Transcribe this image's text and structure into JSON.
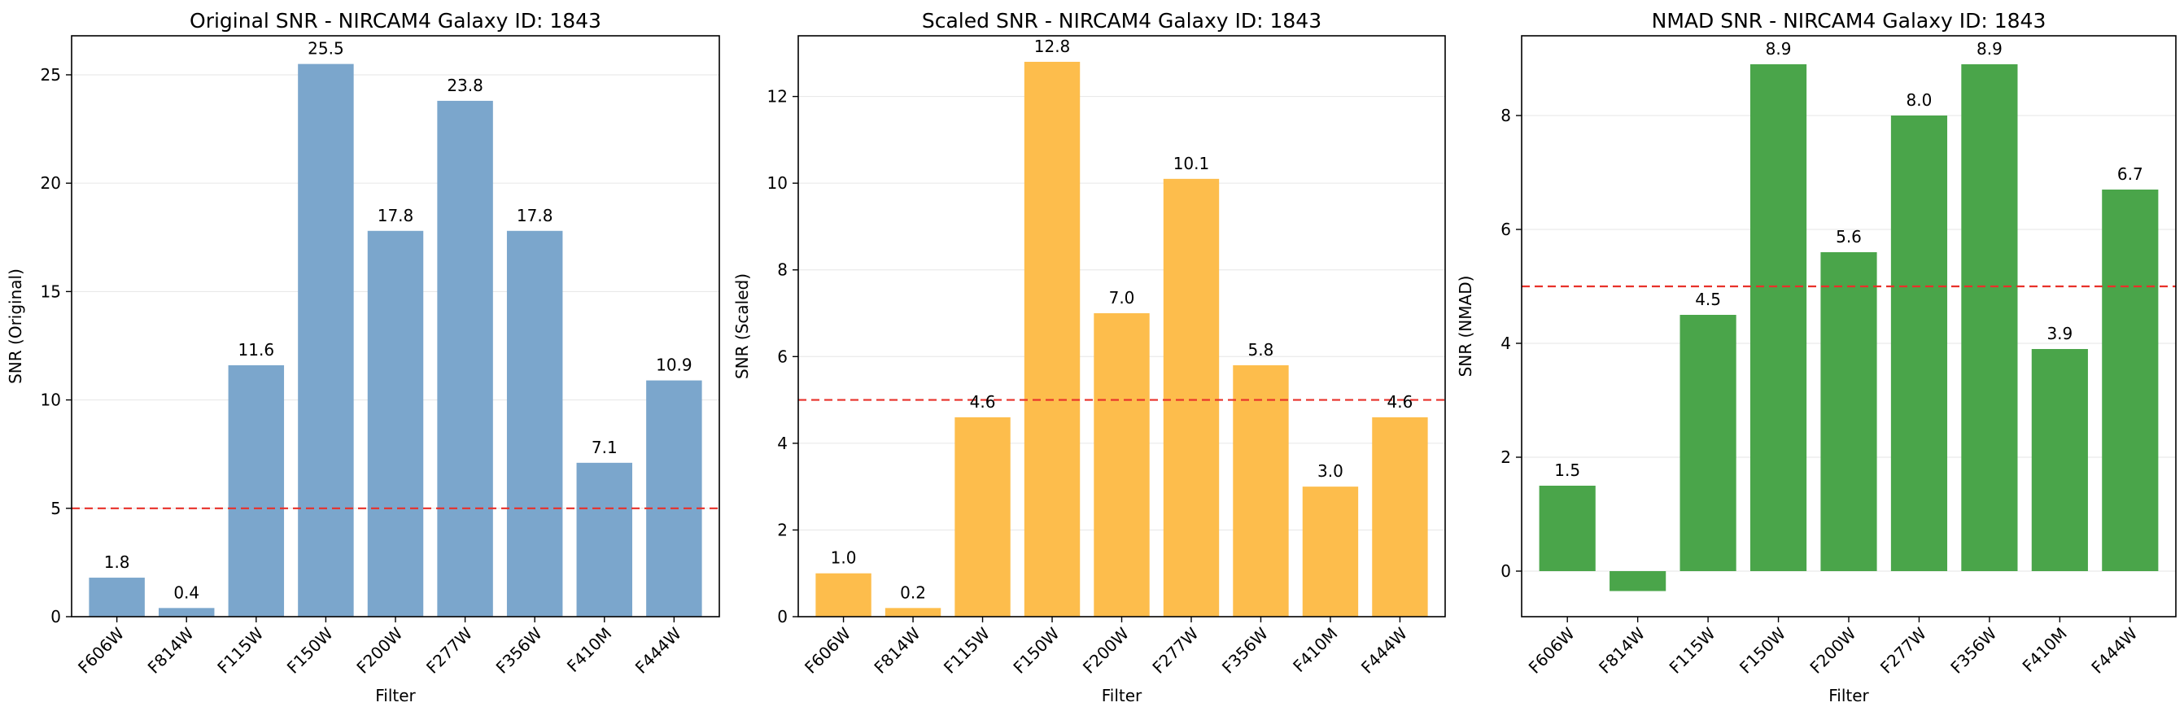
{
  "threshold_color": "#e8312a",
  "chart_data": [
    {
      "type": "bar",
      "title": "Original SNR - NIRCAM4 Galaxy ID: 1843",
      "xlabel": "Filter",
      "ylabel": "SNR (Original)",
      "categories": [
        "F606W",
        "F814W",
        "F115W",
        "F150W",
        "F200W",
        "F277W",
        "F356W",
        "F410M",
        "F444W"
      ],
      "values": [
        1.8,
        0.4,
        11.6,
        25.5,
        17.8,
        23.8,
        17.8,
        7.1,
        10.9
      ],
      "value_labels": [
        "1.8",
        "0.4",
        "11.6",
        "25.5",
        "17.8",
        "23.8",
        "17.8",
        "7.1",
        "10.9"
      ],
      "ylim": [
        0,
        26.8
      ],
      "yticks": [
        0,
        5,
        10,
        15,
        20,
        25
      ],
      "threshold": 5,
      "color": "#7ba6cc",
      "grid": true
    },
    {
      "type": "bar",
      "title": "Scaled SNR - NIRCAM4 Galaxy ID: 1843",
      "xlabel": "Filter",
      "ylabel": "SNR (Scaled)",
      "categories": [
        "F606W",
        "F814W",
        "F115W",
        "F150W",
        "F200W",
        "F277W",
        "F356W",
        "F410M",
        "F444W"
      ],
      "values": [
        1.0,
        0.2,
        4.6,
        12.8,
        7.0,
        10.1,
        5.8,
        3.0,
        4.6
      ],
      "value_labels": [
        "1.0",
        "0.2",
        "4.6",
        "12.8",
        "7.0",
        "10.1",
        "5.8",
        "3.0",
        "4.6"
      ],
      "ylim": [
        0,
        13.4
      ],
      "yticks": [
        0,
        2,
        4,
        6,
        8,
        10,
        12
      ],
      "threshold": 5,
      "color": "#fdbd4c",
      "grid": true
    },
    {
      "type": "bar",
      "title": "NMAD SNR - NIRCAM4 Galaxy ID: 1843",
      "xlabel": "Filter",
      "ylabel": "SNR (NMAD)",
      "categories": [
        "F606W",
        "F814W",
        "F115W",
        "F150W",
        "F200W",
        "F277W",
        "F356W",
        "F410M",
        "F444W"
      ],
      "values": [
        1.5,
        -0.35,
        4.5,
        8.9,
        5.6,
        8.0,
        8.9,
        3.9,
        6.7
      ],
      "value_labels": [
        "1.5",
        "",
        "4.5",
        "8.9",
        "5.6",
        "8.0",
        "8.9",
        "3.9",
        "6.7"
      ],
      "ylim": [
        -0.8,
        9.4
      ],
      "yticks": [
        0,
        2,
        4,
        6,
        8
      ],
      "threshold": 5,
      "color": "#4aa54a",
      "grid": true
    }
  ]
}
